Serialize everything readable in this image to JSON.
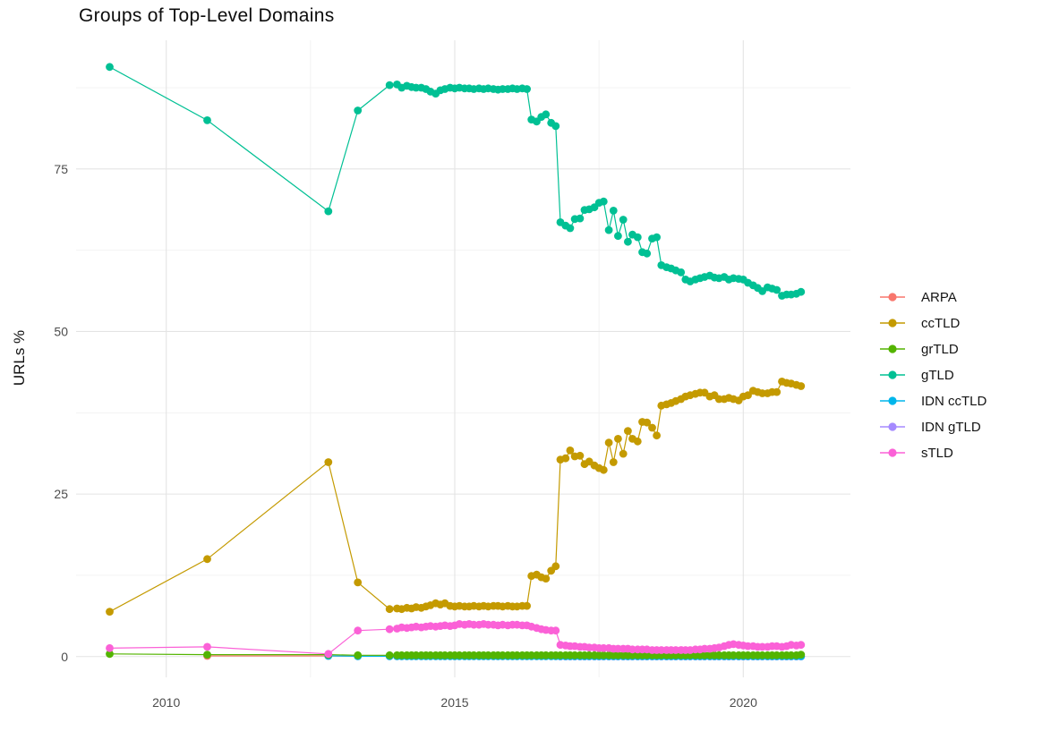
{
  "title": "Groups of Top-Level Domains",
  "chart_data": {
    "type": "line",
    "title": "Groups of Top-Level Domains",
    "xlabel": "",
    "ylabel": "URLs %",
    "legend_position": "right",
    "grid": true,
    "xlim": [
      2008.5,
      2021.5
    ],
    "ylim": [
      -3.2,
      94.8
    ],
    "x_major_ticks": [
      2010,
      2015,
      2020
    ],
    "x_tick_labels": [
      "2010",
      "2015",
      "2020"
    ],
    "x_minor_ticks": [
      2012.5,
      2017.5
    ],
    "y_major_ticks": [
      0,
      25,
      50,
      75
    ],
    "y_tick_labels": [
      "0",
      "25",
      "50",
      "75"
    ],
    "y_minor_ticks": [
      12.5,
      37.5,
      62.5,
      87.5
    ],
    "legend_order": [
      "ARPA",
      "ccTLD",
      "grTLD",
      "gTLD",
      "IDN ccTLD",
      "IDN gTLD",
      "sTLD"
    ],
    "draw_order": [
      "ARPA",
      "IDN gTLD",
      "IDN ccTLD",
      "grTLD",
      "gTLD",
      "ccTLD",
      "sTLD"
    ],
    "x": [
      2009.02,
      2010.71,
      2012.81,
      2013.32,
      2013.87,
      2014,
      2014.08,
      2014.17,
      2014.25,
      2014.33,
      2014.42,
      2014.5,
      2014.58,
      2014.67,
      2014.75,
      2014.83,
      2014.92,
      2015,
      2015.08,
      2015.17,
      2015.25,
      2015.33,
      2015.42,
      2015.5,
      2015.58,
      2015.67,
      2015.75,
      2015.83,
      2015.92,
      2016,
      2016.08,
      2016.17,
      2016.25,
      2016.33,
      2016.42,
      2016.5,
      2016.58,
      2016.67,
      2016.75,
      2016.83,
      2016.92,
      2017,
      2017.08,
      2017.17,
      2017.25,
      2017.33,
      2017.42,
      2017.5,
      2017.58,
      2017.67,
      2017.75,
      2017.83,
      2017.92,
      2018,
      2018.08,
      2018.17,
      2018.25,
      2018.33,
      2018.42,
      2018.5,
      2018.58,
      2018.67,
      2018.75,
      2018.83,
      2018.92,
      2019,
      2019.08,
      2019.17,
      2019.25,
      2019.33,
      2019.42,
      2019.5,
      2019.58,
      2019.67,
      2019.75,
      2019.83,
      2019.92,
      2020,
      2020.08,
      2020.17,
      2020.25,
      2020.33,
      2020.42,
      2020.5,
      2020.58,
      2020.67,
      2020.75,
      2020.83,
      2020.92,
      2021
    ],
    "series": [
      {
        "name": "ARPA",
        "color": "#F8766D",
        "values": [
          null,
          0.1,
          0.1,
          0.05,
          0.05,
          0.05,
          0.05,
          0.05,
          0.05,
          0.05,
          0.05,
          0.05,
          0.05,
          0.05,
          0.05,
          0.05,
          0.05,
          0.05,
          0.05,
          0.05,
          0.05,
          0.05,
          0.05,
          0.05,
          0.05,
          0.05,
          0.05,
          0.05,
          0.05,
          0.05,
          0.05,
          0.05,
          0.05,
          0.05,
          0.05,
          0.05,
          0.05,
          0.05,
          0.05,
          0.05,
          0.05,
          0.05,
          0.05,
          0.05,
          0.05,
          0.05,
          0.05,
          0.05,
          0.05,
          0.05,
          0.05,
          0.05,
          0.05,
          0.05,
          0.05,
          0.05,
          0.05,
          0.05,
          0.05,
          0.05,
          0.05,
          0.05,
          0.05,
          0.05,
          0.05,
          0.05,
          0.05,
          0.05,
          0.05,
          0.05,
          0.05,
          0.05,
          0.05,
          0.05,
          0.05,
          0.05,
          0.05,
          0.05,
          0.05,
          0.05,
          0.05,
          0.05,
          0.05,
          0.05,
          0.05,
          0.05,
          0.05,
          0.05,
          0.05,
          0.05
        ]
      },
      {
        "name": "ccTLD",
        "color": "#C49A00",
        "values": [
          6.9,
          15.0,
          29.9,
          11.4,
          7.3,
          7.4,
          7.3,
          7.5,
          7.4,
          7.6,
          7.5,
          7.7,
          7.9,
          8.2,
          8.0,
          8.2,
          7.8,
          7.7,
          7.8,
          7.7,
          7.7,
          7.8,
          7.7,
          7.8,
          7.7,
          7.8,
          7.8,
          7.7,
          7.8,
          7.7,
          7.7,
          7.8,
          7.8,
          12.4,
          12.6,
          12.2,
          12.0,
          13.2,
          13.9,
          30.3,
          30.5,
          31.7,
          30.8,
          30.9,
          29.6,
          30.0,
          29.4,
          29.0,
          28.7,
          32.9,
          29.9,
          33.5,
          31.2,
          34.7,
          33.5,
          33.1,
          36.1,
          36.0,
          35.2,
          34.0,
          38.6,
          38.8,
          39.0,
          39.3,
          39.6,
          40.0,
          40.2,
          40.4,
          40.6,
          40.6,
          40.0,
          40.2,
          39.6,
          39.6,
          39.8,
          39.6,
          39.4,
          40.0,
          40.2,
          40.9,
          40.7,
          40.5,
          40.5,
          40.7,
          40.7,
          42.3,
          42.1,
          42.0,
          41.8,
          41.6
        ]
      },
      {
        "name": "grTLD",
        "color": "#53B400",
        "values": [
          0.4,
          0.3,
          0.3,
          0.2,
          0.2,
          0.2,
          0.2,
          0.2,
          0.2,
          0.2,
          0.2,
          0.2,
          0.2,
          0.2,
          0.2,
          0.2,
          0.2,
          0.2,
          0.2,
          0.2,
          0.2,
          0.2,
          0.2,
          0.2,
          0.2,
          0.2,
          0.2,
          0.2,
          0.2,
          0.2,
          0.2,
          0.2,
          0.2,
          0.2,
          0.2,
          0.2,
          0.2,
          0.2,
          0.2,
          0.2,
          0.2,
          0.2,
          0.2,
          0.2,
          0.2,
          0.2,
          0.2,
          0.2,
          0.2,
          0.2,
          0.2,
          0.2,
          0.2,
          0.2,
          0.2,
          0.2,
          0.2,
          0.2,
          0.2,
          0.2,
          0.2,
          0.2,
          0.2,
          0.2,
          0.2,
          0.2,
          0.2,
          0.2,
          0.2,
          0.2,
          0.2,
          0.2,
          0.2,
          0.2,
          0.2,
          0.2,
          0.2,
          0.2,
          0.2,
          0.2,
          0.2,
          0.2,
          0.2,
          0.2,
          0.2,
          0.2,
          0.2,
          0.2,
          0.2,
          0.3
        ]
      },
      {
        "name": "gTLD",
        "color": "#00C094",
        "values": [
          90.7,
          82.5,
          68.5,
          84.0,
          87.9,
          88.0,
          87.5,
          87.8,
          87.6,
          87.5,
          87.5,
          87.3,
          86.9,
          86.6,
          87.1,
          87.3,
          87.5,
          87.4,
          87.5,
          87.4,
          87.4,
          87.3,
          87.4,
          87.3,
          87.4,
          87.3,
          87.2,
          87.3,
          87.3,
          87.4,
          87.3,
          87.4,
          87.3,
          82.6,
          82.3,
          83.0,
          83.4,
          82.1,
          81.6,
          66.8,
          66.3,
          65.9,
          67.3,
          67.4,
          68.7,
          68.8,
          69.1,
          69.8,
          70.0,
          65.6,
          68.6,
          64.7,
          67.2,
          63.8,
          64.9,
          64.5,
          62.2,
          62.0,
          64.3,
          64.5,
          60.2,
          59.9,
          59.7,
          59.4,
          59.1,
          58.0,
          57.7,
          58.0,
          58.2,
          58.4,
          58.6,
          58.3,
          58.2,
          58.4,
          58.0,
          58.2,
          58.1,
          58.0,
          57.5,
          57.1,
          56.7,
          56.2,
          56.8,
          56.6,
          56.4,
          55.5,
          55.7,
          55.7,
          55.8,
          56.1
        ]
      },
      {
        "name": "IDN ccTLD",
        "color": "#00B6EB",
        "values": [
          null,
          null,
          0.1,
          0.05,
          0.05,
          0.05,
          0.05,
          0.05,
          0.05,
          0.05,
          0.05,
          0.05,
          0.05,
          0.05,
          0.05,
          0.05,
          0.05,
          0.05,
          0.05,
          0.05,
          0.05,
          0.05,
          0.05,
          0.05,
          0.05,
          0.05,
          0.05,
          0.05,
          0.05,
          0.05,
          0.05,
          0.05,
          0.05,
          0.05,
          0.05,
          0.05,
          0.05,
          0.05,
          0.05,
          0.05,
          0.05,
          0.05,
          0.05,
          0.05,
          0.05,
          0.05,
          0.05,
          0.05,
          0.05,
          0.05,
          0.05,
          0.05,
          0.05,
          0.05,
          0.05,
          0.05,
          0.05,
          0.05,
          0.05,
          0.05,
          0.05,
          0.05,
          0.05,
          0.05,
          0.05,
          0.05,
          0.05,
          0.05,
          0.05,
          0.05,
          0.05,
          0.05,
          0.05,
          0.05,
          0.05,
          0.05,
          0.05,
          0.05,
          0.05,
          0.05,
          0.05,
          0.05,
          0.05,
          0.05,
          0.05,
          0.05,
          0.05,
          0.05,
          0.05,
          0.05
        ]
      },
      {
        "name": "IDN gTLD",
        "color": "#A58AFF",
        "values": [
          null,
          null,
          null,
          null,
          null,
          null,
          null,
          null,
          null,
          null,
          null,
          null,
          null,
          null,
          null,
          null,
          null,
          null,
          null,
          null,
          null,
          null,
          null,
          null,
          null,
          null,
          null,
          null,
          null,
          null,
          null,
          null,
          null,
          null,
          null,
          null,
          null,
          null,
          null,
          0.02,
          0.02,
          0.02,
          0.02,
          0.02,
          0.02,
          0.02,
          0.02,
          0.02,
          0.02,
          0.02,
          0.02,
          0.02,
          0.02,
          0.02,
          0.02,
          0.02,
          0.02,
          0.02,
          0.02,
          0.02,
          0.02,
          0.02,
          0.02,
          0.02,
          0.02,
          0.02,
          0.02,
          0.02,
          0.02,
          0.02,
          0.02,
          0.02,
          0.02,
          0.02,
          0.02,
          0.02,
          0.02,
          0.02,
          0.02,
          0.02,
          0.02,
          0.02,
          0.02,
          0.02,
          0.02,
          0.02,
          0.02,
          0.02,
          0.02,
          0.02
        ]
      },
      {
        "name": "sTLD",
        "color": "#FB61D7",
        "values": [
          1.3,
          1.5,
          0.4,
          4.0,
          4.2,
          4.3,
          4.5,
          4.4,
          4.5,
          4.6,
          4.5,
          4.6,
          4.7,
          4.6,
          4.7,
          4.8,
          4.7,
          4.8,
          5.0,
          4.9,
          5.0,
          4.9,
          4.9,
          5.0,
          4.9,
          4.9,
          4.8,
          4.9,
          4.8,
          4.9,
          4.9,
          4.8,
          4.8,
          4.6,
          4.4,
          4.2,
          4.1,
          4.0,
          4.0,
          1.8,
          1.7,
          1.6,
          1.6,
          1.5,
          1.5,
          1.4,
          1.4,
          1.3,
          1.3,
          1.3,
          1.2,
          1.2,
          1.2,
          1.2,
          1.1,
          1.1,
          1.1,
          1.1,
          1.0,
          1.0,
          1.0,
          1.0,
          1.0,
          1.0,
          1.0,
          1.0,
          1.0,
          1.1,
          1.1,
          1.2,
          1.2,
          1.3,
          1.4,
          1.6,
          1.8,
          1.9,
          1.8,
          1.7,
          1.6,
          1.6,
          1.5,
          1.5,
          1.5,
          1.6,
          1.6,
          1.5,
          1.6,
          1.8,
          1.7,
          1.8
        ]
      }
    ],
    "style": {
      "grid_major_color": "#E4E4E4",
      "grid_minor_color": "#F1F1F1",
      "axis_text_color": "#4D4D4D",
      "background": "#FFFFFF",
      "point_radius": 4.4,
      "line_width": 1.2
    }
  }
}
